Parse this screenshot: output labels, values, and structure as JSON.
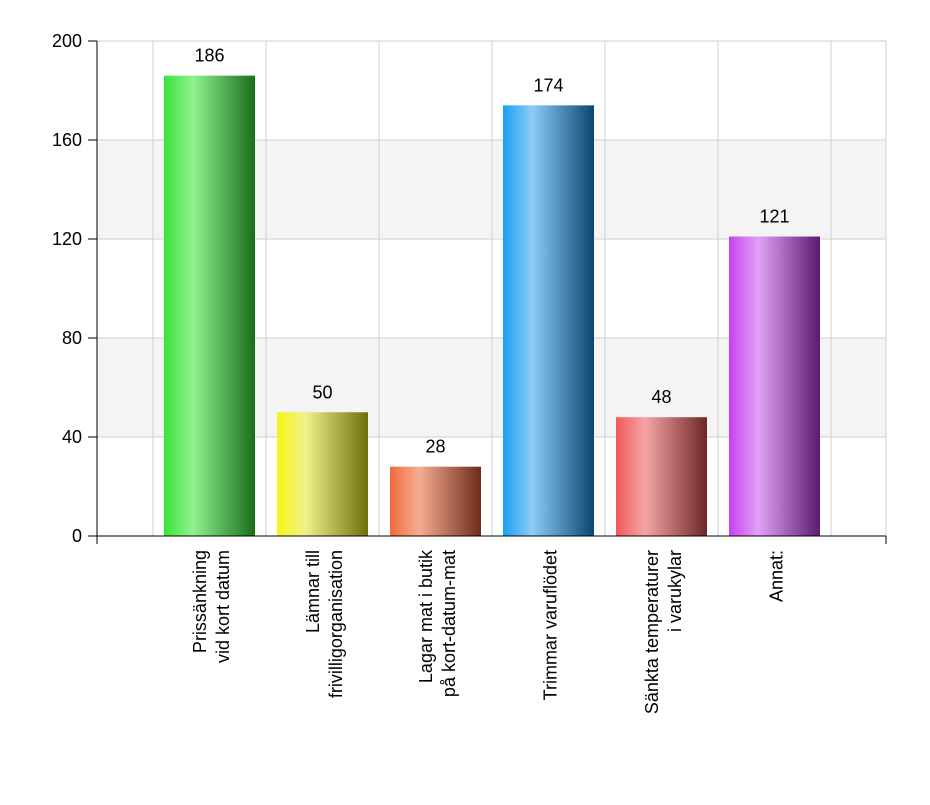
{
  "chart_data": {
    "type": "bar",
    "categories": [
      [
        "Prissänkning",
        "vid kort datum"
      ],
      [
        "Lämnar till",
        "frivilligorganisation"
      ],
      [
        "Lagar mat i butik",
        "på kort-datum-mat"
      ],
      [
        "Trimmar varuflödet"
      ],
      [
        "Sänkta temperaturer",
        "i varukylar"
      ],
      [
        "Annat:"
      ]
    ],
    "values": [
      186,
      50,
      28,
      174,
      48,
      121
    ],
    "data_labels": [
      "186",
      "50",
      "28",
      "174",
      "48",
      "121"
    ],
    "y_ticks": [
      0,
      40,
      80,
      120,
      160,
      200
    ],
    "ylim": [
      0,
      200
    ],
    "grid": true,
    "bar_colors": [
      [
        "#3be23b",
        "#8ff28f",
        "#1a6e1a"
      ],
      [
        "#f5f516",
        "#f0f08a",
        "#6e6e0c"
      ],
      [
        "#f06a3c",
        "#f5ad92",
        "#6e2a1a"
      ],
      [
        "#1aa0f0",
        "#8ccdf7",
        "#0a4570"
      ],
      [
        "#f05a5a",
        "#f5a5a5",
        "#6e2626"
      ],
      [
        "#c840f0",
        "#e2a2f7",
        "#5a1a6e"
      ]
    ]
  }
}
